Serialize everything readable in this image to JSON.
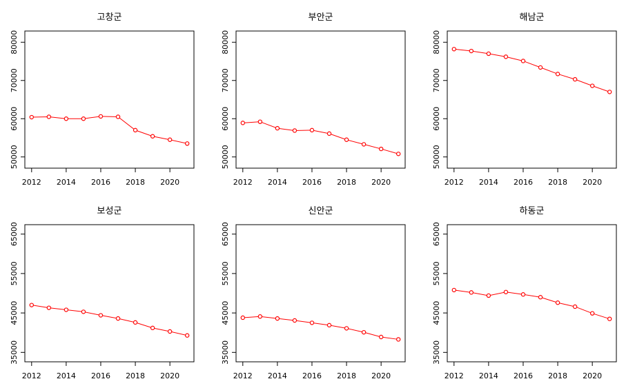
{
  "chart_data": [
    {
      "type": "line",
      "title": "고창군",
      "x": [
        2012,
        2013,
        2014,
        2015,
        2016,
        2017,
        2018,
        2019,
        2020,
        2021
      ],
      "series": [
        {
          "values": [
            60400,
            60500,
            60000,
            60000,
            60600,
            60500,
            57000,
            55400,
            54500,
            53500
          ]
        }
      ],
      "xticks": [
        2012,
        2014,
        2016,
        2018,
        2020
      ],
      "yticks": [
        50000,
        60000,
        70000,
        80000
      ],
      "xlim": [
        2012,
        2021
      ],
      "ylim": [
        48500,
        81500
      ],
      "color": "#ff0000"
    },
    {
      "type": "line",
      "title": "부안군",
      "x": [
        2012,
        2013,
        2014,
        2015,
        2016,
        2017,
        2018,
        2019,
        2020,
        2021
      ],
      "series": [
        {
          "values": [
            58900,
            59200,
            57500,
            56900,
            57000,
            56100,
            54500,
            53300,
            52100,
            50800
          ]
        }
      ],
      "xticks": [
        2012,
        2014,
        2016,
        2018,
        2020
      ],
      "yticks": [
        50000,
        60000,
        70000,
        80000
      ],
      "xlim": [
        2012,
        2021
      ],
      "ylim": [
        48500,
        81500
      ],
      "color": "#ff0000"
    },
    {
      "type": "line",
      "title": "해남군",
      "x": [
        2012,
        2013,
        2014,
        2015,
        2016,
        2017,
        2018,
        2019,
        2020,
        2021
      ],
      "series": [
        {
          "values": [
            78200,
            77700,
            77000,
            76200,
            75100,
            73400,
            71700,
            70300,
            68600,
            67000
          ]
        }
      ],
      "xticks": [
        2012,
        2014,
        2016,
        2018,
        2020
      ],
      "yticks": [
        50000,
        60000,
        70000,
        80000
      ],
      "xlim": [
        2012,
        2021
      ],
      "ylim": [
        48500,
        81500
      ],
      "color": "#ff0000"
    },
    {
      "type": "line",
      "title": "보성군",
      "x": [
        2012,
        2013,
        2014,
        2015,
        2016,
        2017,
        2018,
        2019,
        2020,
        2021
      ],
      "series": [
        {
          "values": [
            47000,
            46300,
            45800,
            45300,
            44400,
            43600,
            42600,
            41200,
            40300,
            39300
          ]
        }
      ],
      "xticks": [
        2012,
        2014,
        2016,
        2018,
        2020
      ],
      "yticks": [
        35000,
        45000,
        55000,
        65000
      ],
      "xlim": [
        2012,
        2021
      ],
      "ylim": [
        34000,
        66000
      ],
      "color": "#ff0000"
    },
    {
      "type": "line",
      "title": "신안군",
      "x": [
        2012,
        2013,
        2014,
        2015,
        2016,
        2017,
        2018,
        2019,
        2020,
        2021
      ],
      "series": [
        {
          "values": [
            43800,
            44100,
            43600,
            43100,
            42500,
            41900,
            41100,
            40100,
            38900,
            38300
          ]
        }
      ],
      "xticks": [
        2012,
        2014,
        2016,
        2018,
        2020
      ],
      "yticks": [
        35000,
        45000,
        55000,
        65000
      ],
      "xlim": [
        2012,
        2021
      ],
      "ylim": [
        34000,
        66000
      ],
      "color": "#ff0000"
    },
    {
      "type": "line",
      "title": "하동군",
      "x": [
        2012,
        2013,
        2014,
        2015,
        2016,
        2017,
        2018,
        2019,
        2020,
        2021
      ],
      "series": [
        {
          "values": [
            50800,
            50200,
            49400,
            50300,
            49700,
            49000,
            47600,
            46600,
            44900,
            43500
          ]
        }
      ],
      "xticks": [
        2012,
        2014,
        2016,
        2018,
        2020
      ],
      "yticks": [
        35000,
        45000,
        55000,
        65000
      ],
      "xlim": [
        2012,
        2021
      ],
      "ylim": [
        34000,
        66000
      ],
      "color": "#ff0000"
    }
  ]
}
